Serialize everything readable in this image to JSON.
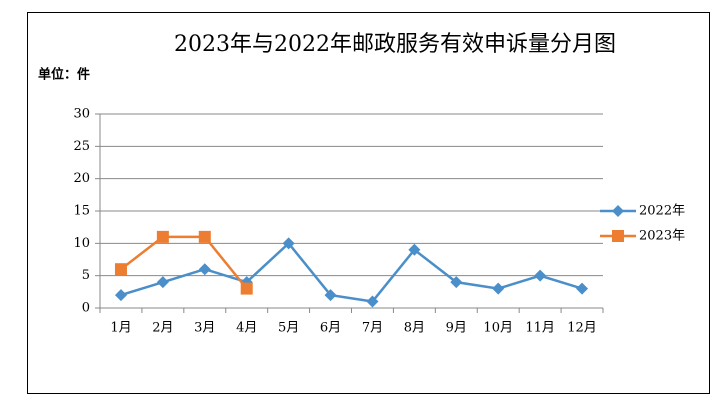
{
  "chart_data": {
    "type": "line",
    "title": "2023年与2022年邮政服务有效申诉量分月图",
    "unit_label": "单位：件",
    "categories": [
      "1月",
      "2月",
      "3月",
      "4月",
      "5月",
      "6月",
      "7月",
      "8月",
      "9月",
      "10月",
      "11月",
      "12月"
    ],
    "series": [
      {
        "name": "2022年",
        "color": "#4a8fc9",
        "marker": "diamond",
        "values": [
          2,
          4,
          6,
          4,
          10,
          2,
          1,
          9,
          4,
          3,
          5,
          3
        ]
      },
      {
        "name": "2023年",
        "color": "#ed7d31",
        "marker": "square",
        "values": [
          6,
          11,
          11,
          3,
          null,
          null,
          null,
          null,
          null,
          null,
          null,
          null
        ]
      }
    ],
    "ylim": [
      0,
      30
    ],
    "yticks": [
      0,
      5,
      10,
      15,
      20,
      25,
      30
    ],
    "grid": true,
    "legend": "right"
  }
}
